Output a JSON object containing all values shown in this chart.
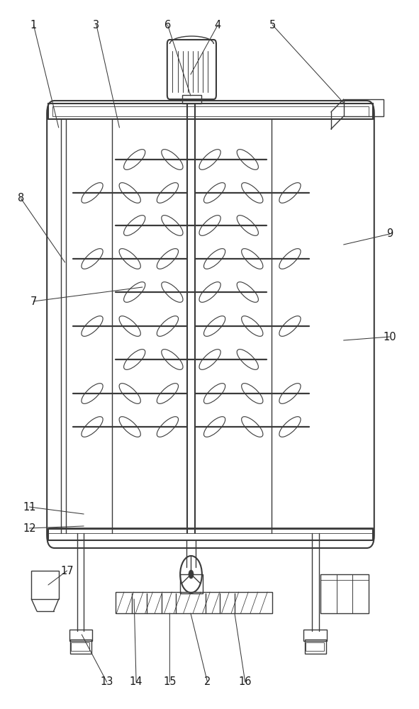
{
  "bg_color": "#ffffff",
  "line_color": "#3a3a3a",
  "lw": 1.0,
  "lw2": 1.5,
  "figsize": [
    5.91,
    10.0
  ],
  "dpi": 100,
  "annotations": {
    "1": {
      "lp": [
        0.08,
        0.965
      ],
      "tp": [
        0.14,
        0.82
      ]
    },
    "3": {
      "lp": [
        0.23,
        0.965
      ],
      "tp": [
        0.285,
        0.82
      ]
    },
    "6": {
      "lp": [
        0.4,
        0.965
      ],
      "tp": [
        0.455,
        0.865
      ]
    },
    "4": {
      "lp": [
        0.52,
        0.965
      ],
      "tp": [
        0.455,
        0.895
      ]
    },
    "5": {
      "lp": [
        0.65,
        0.965
      ],
      "tp": [
        0.82,
        0.855
      ]
    },
    "8": {
      "lp": [
        0.05,
        0.72
      ],
      "tp": [
        0.155,
        0.63
      ]
    },
    "9": {
      "lp": [
        0.93,
        0.67
      ],
      "tp": [
        0.82,
        0.655
      ]
    },
    "7": {
      "lp": [
        0.08,
        0.575
      ],
      "tp": [
        0.34,
        0.595
      ]
    },
    "10": {
      "lp": [
        0.93,
        0.525
      ],
      "tp": [
        0.82,
        0.52
      ]
    },
    "11": {
      "lp": [
        0.07,
        0.285
      ],
      "tp": [
        0.2,
        0.275
      ]
    },
    "12": {
      "lp": [
        0.07,
        0.255
      ],
      "tp": [
        0.2,
        0.258
      ]
    },
    "17": {
      "lp": [
        0.16,
        0.195
      ],
      "tp": [
        0.115,
        0.175
      ]
    },
    "13": {
      "lp": [
        0.255,
        0.038
      ],
      "tp": [
        0.195,
        0.105
      ]
    },
    "14": {
      "lp": [
        0.325,
        0.038
      ],
      "tp": [
        0.32,
        0.155
      ]
    },
    "15": {
      "lp": [
        0.405,
        0.038
      ],
      "tp": [
        0.405,
        0.135
      ]
    },
    "2": {
      "lp": [
        0.495,
        0.038
      ],
      "tp": [
        0.455,
        0.135
      ]
    },
    "16": {
      "lp": [
        0.585,
        0.038
      ],
      "tp": [
        0.56,
        0.135
      ]
    }
  }
}
